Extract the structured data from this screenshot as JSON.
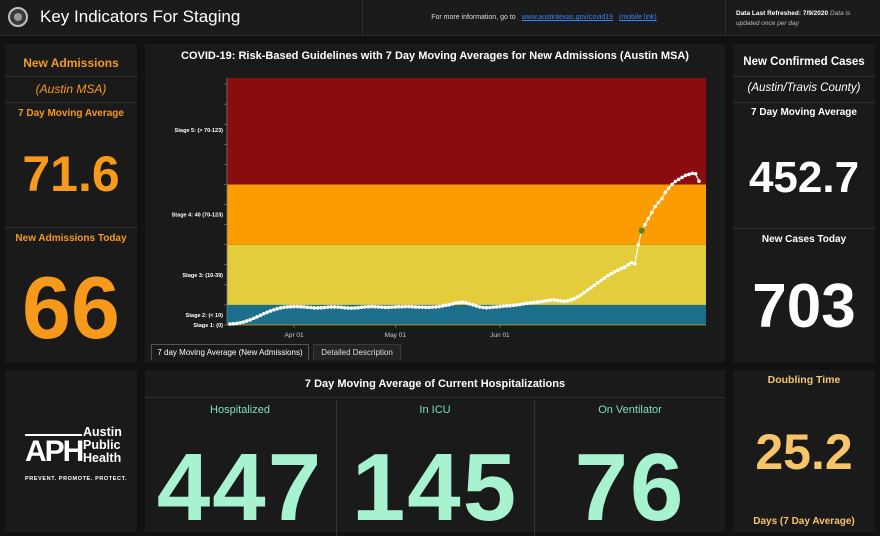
{
  "header": {
    "title": "Key Indicators For Staging",
    "info_text": "For more information, go to",
    "info_link": "www.austintexas.gov/covid19",
    "mobile_link": "(mobile link)",
    "refresh_label": "Data Last Refreshed:",
    "refresh_date": "7/9/2020",
    "refresh_note": "Data is updated once per day"
  },
  "left_panel": {
    "title": "New Admissions",
    "subtitle": "(Austin MSA)",
    "avg_label": "7 Day Moving Average",
    "avg_value": "71.6",
    "today_label": "New Admissions Today",
    "today_value": "66"
  },
  "right_panel": {
    "title": "New Confirmed Cases",
    "subtitle": "(Austin/Travis County)",
    "avg_label": "7 Day Moving Average",
    "avg_value": "452.7",
    "today_label": "New Cases Today",
    "today_value": "703"
  },
  "tabs": {
    "tab1": "7 day Moving Average (New Admissions)",
    "tab2": "Detailed Description"
  },
  "hospitalizations": {
    "title": "7 Day Moving Average of Current Hospitalizations",
    "cols": [
      {
        "label": "Hospitalized",
        "value": "447"
      },
      {
        "label": "In ICU",
        "value": "145"
      },
      {
        "label": "On Ventilator",
        "value": "76"
      }
    ]
  },
  "doubling": {
    "title": "Doubling Time",
    "value": "25.2",
    "unit": "Days (7 Day Average)"
  },
  "logo": {
    "mark": "APH",
    "line1": "Austin",
    "line2": "Public",
    "line3": "Health",
    "tagline": "PREVENT. PROMOTE. PROTECT."
  },
  "chart_data": {
    "type": "line",
    "title": "COVID-19: Risk-Based Guidelines with 7 Day Moving Averages for New Admissions (Austin MSA)",
    "xlabel": "",
    "ylabel": "",
    "x_start": "2020-03-13",
    "x_ticks": [
      "Apr 01",
      "May 01",
      "Jun 01"
    ],
    "x_tick_dates": [
      "2020-04-01",
      "2020-05-01",
      "2020-06-01"
    ],
    "ylim": [
      0,
      123
    ],
    "bands": [
      {
        "label": "Stage 1: (0)",
        "min": 0,
        "max": 0.5,
        "color": "#6b8e23"
      },
      {
        "label": "Stage 2: (< 10)",
        "min": 0.5,
        "max": 10,
        "color": "#1b6f8a"
      },
      {
        "label": "Stage 3: (10-39)",
        "min": 10,
        "max": 40,
        "color": "#e3cd3c"
      },
      {
        "label": "Stage 4: 40 (70-123)",
        "min": 40,
        "max": 70,
        "color": "#fb9c00"
      },
      {
        "label": "Stage 5: (> 70-123)",
        "min": 70,
        "max": 123,
        "color": "#8a0c0e"
      }
    ],
    "band_label_values": [
      0,
      5,
      25,
      55,
      97
    ],
    "series": [
      {
        "values": [
          0.5,
          0.6,
          0.8,
          1.1,
          1.5,
          2,
          2.6,
          3.3,
          4,
          4.8,
          5.6,
          6.3,
          7,
          7.6,
          8.1,
          8.5,
          8.8,
          9,
          9.1,
          9.2,
          9.2,
          9.1,
          9,
          8.8,
          8.7,
          8.5,
          8.5,
          8.6,
          8.7,
          8.9,
          9,
          9,
          8.9,
          8.8,
          8.6,
          8.5,
          8.4,
          8.5,
          8.6,
          8.8,
          9,
          9.1,
          9.2,
          9.1,
          9,
          8.9,
          8.8,
          8.8,
          8.9,
          9,
          9.1,
          9.1,
          9.2,
          9.2,
          9.1,
          9,
          8.9,
          8.9,
          8.8,
          8.8,
          8.9,
          9,
          9.2,
          9.5,
          9.8,
          10.1,
          10.5,
          11,
          11.2,
          11.3,
          11,
          10.5,
          10,
          9.5,
          9,
          8.7,
          8.6,
          8.7,
          8.9,
          9,
          9.2,
          9.4,
          9.5,
          9.6,
          9.8,
          10,
          10.2,
          10.5,
          10.8,
          11,
          11.2,
          11.4,
          11.6,
          11.9,
          12.2,
          12.4,
          12.5,
          12.3,
          12,
          11.8,
          12,
          12.5,
          13.1,
          13.9,
          15,
          16.2,
          17.4,
          18.6,
          19.8,
          21,
          22.2,
          23.4,
          24.6,
          25.5,
          26.5,
          27.3,
          28.2,
          28.8,
          30,
          31,
          30.5,
          40,
          47,
          50,
          53,
          56,
          59,
          61,
          63,
          66,
          68,
          70,
          71.5,
          72.5,
          73.5,
          74.5,
          75,
          75.5,
          75.3,
          71.6
        ],
        "highlight_index": 122
      }
    ]
  }
}
